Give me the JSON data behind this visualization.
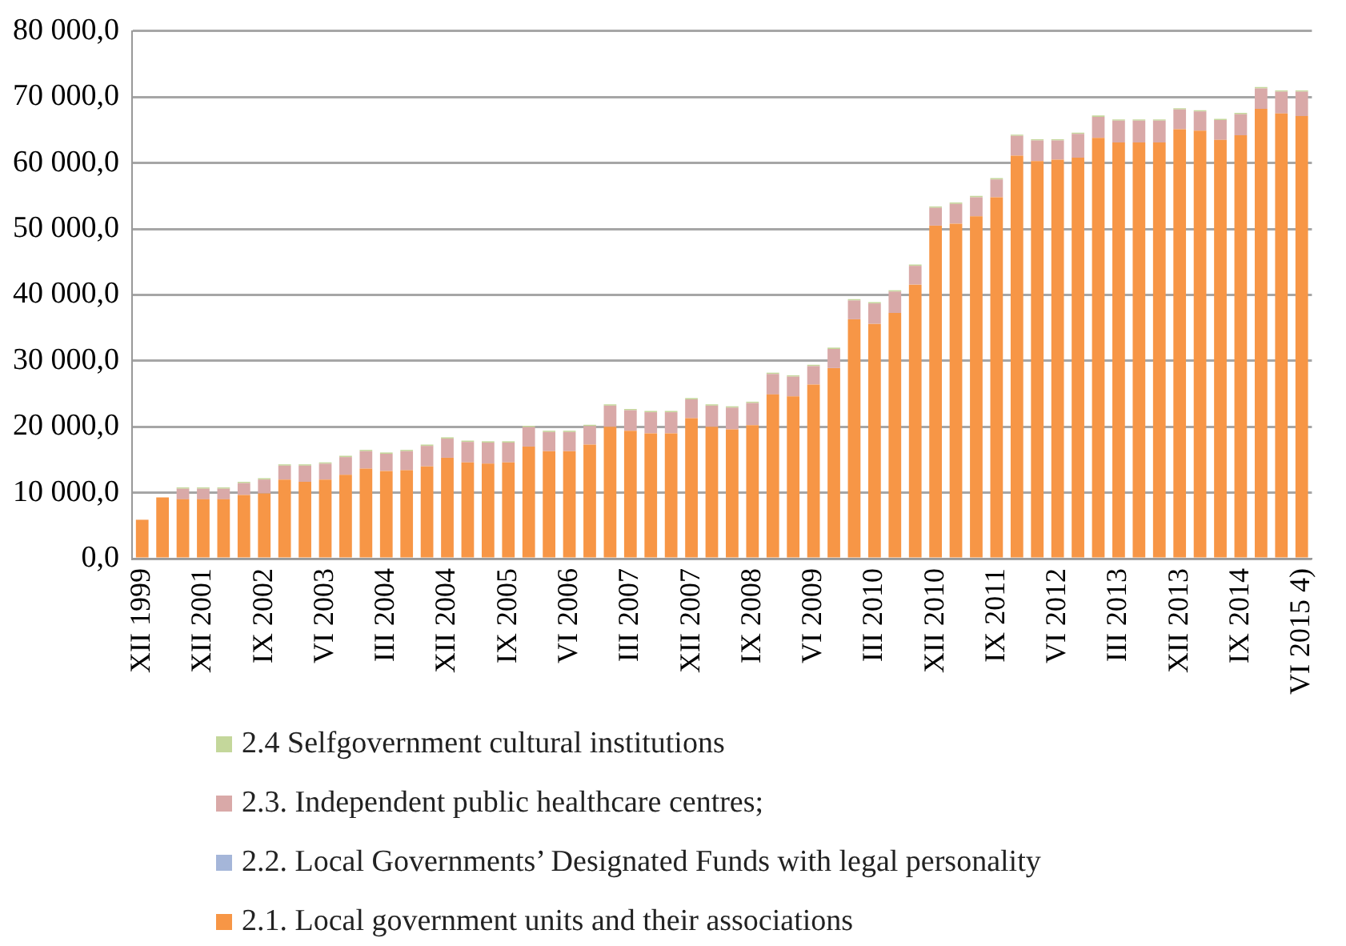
{
  "chart_data": {
    "type": "bar",
    "stacked": true,
    "grid": "y",
    "legend": "bottom",
    "categories": [
      "XII 1999",
      null,
      null,
      "XII 2001",
      null,
      null,
      "IX 2002",
      null,
      null,
      "VI 2003",
      null,
      null,
      "III 2004",
      null,
      null,
      "XII 2004",
      null,
      null,
      "IX 2005",
      null,
      null,
      "VI 2006",
      null,
      null,
      "III 2007",
      null,
      null,
      "XII 2007",
      null,
      null,
      "IX 2008",
      null,
      null,
      "VI 2009",
      null,
      null,
      "III 2010",
      null,
      null,
      "XII 2010",
      null,
      null,
      "IX 2011",
      null,
      null,
      "VI 2012",
      null,
      null,
      "III 2013",
      null,
      null,
      "XII 2013",
      null,
      null,
      "IX 2014",
      null,
      null,
      "VI 2015 4)"
    ],
    "ylim": [
      0,
      80000
    ],
    "yticks": [
      {
        "value": 0,
        "label": "0,0"
      },
      {
        "value": 10000,
        "label": "10 000,0"
      },
      {
        "value": 20000,
        "label": "20 000,0"
      },
      {
        "value": 30000,
        "label": "30 000,0"
      },
      {
        "value": 40000,
        "label": "40 000,0"
      },
      {
        "value": 50000,
        "label": "50 000,0"
      },
      {
        "value": 60000,
        "label": "60 000,0"
      },
      {
        "value": 70000,
        "label": "70 000,0"
      },
      {
        "value": 80000,
        "label": "80 000,0"
      }
    ],
    "series": [
      {
        "name": "2.1. Local government units and their associations",
        "color": "#f79646",
        "values": [
          5900,
          9300,
          9000,
          9000,
          9000,
          9650,
          9900,
          12000,
          11650,
          12000,
          12700,
          13650,
          13300,
          13400,
          14000,
          15300,
          14600,
          14400,
          14600,
          17000,
          16300,
          16300,
          17300,
          20000,
          19400,
          19000,
          19000,
          21300,
          20000,
          19600,
          20250,
          24900,
          24600,
          26400,
          28900,
          36300,
          35600,
          37250,
          41550,
          50500,
          50800,
          51900,
          54800,
          61100,
          60300,
          60500,
          60800,
          63800,
          63100,
          63100,
          63100,
          65100,
          64900,
          63500,
          64200,
          68200,
          67500,
          67100
        ]
      },
      {
        "name": "2.2. Local Governments’ Designated Funds with legal personality",
        "color": "#a5b6d9",
        "values": [
          0,
          0,
          0,
          0,
          0,
          0,
          0,
          0,
          0,
          0,
          0,
          0,
          0,
          0,
          0,
          0,
          0,
          0,
          0,
          0,
          0,
          0,
          0,
          0,
          0,
          0,
          0,
          0,
          0,
          0,
          0,
          0,
          0,
          0,
          0,
          0,
          0,
          0,
          0,
          0,
          0,
          0,
          0,
          0,
          0,
          0,
          0,
          0,
          0,
          0,
          0,
          0,
          0,
          0,
          0,
          0,
          0,
          0
        ]
      },
      {
        "name": "2.3.  Independent public healthcare centres;",
        "color": "#d9a9a8",
        "values": [
          0,
          0,
          1600,
          1600,
          1600,
          1800,
          2100,
          2100,
          2450,
          2400,
          2700,
          2650,
          2600,
          2900,
          3100,
          2900,
          3100,
          3200,
          3000,
          2950,
          2900,
          2900,
          2800,
          3200,
          3100,
          3200,
          3200,
          2850,
          3200,
          3300,
          3350,
          3100,
          3000,
          2800,
          2900,
          2850,
          3100,
          3250,
          2850,
          2700,
          3000,
          2900,
          2700,
          3000,
          3100,
          2900,
          3600,
          3200,
          3300,
          3300,
          3300,
          3000,
          2900,
          3000,
          3200,
          3100,
          3300,
          3700
        ]
      },
      {
        "name": "2.4 Selfgovernment cultural institutions",
        "color": "#c4d79b",
        "values": [
          0,
          0,
          200,
          200,
          200,
          200,
          200,
          200,
          200,
          200,
          200,
          200,
          200,
          200,
          200,
          200,
          200,
          200,
          200,
          200,
          200,
          200,
          200,
          200,
          200,
          200,
          200,
          200,
          200,
          200,
          200,
          200,
          200,
          200,
          200,
          200,
          200,
          200,
          200,
          200,
          200,
          200,
          200,
          200,
          200,
          200,
          200,
          200,
          200,
          200,
          200,
          200,
          200,
          200,
          200,
          200,
          200,
          200
        ]
      }
    ]
  }
}
